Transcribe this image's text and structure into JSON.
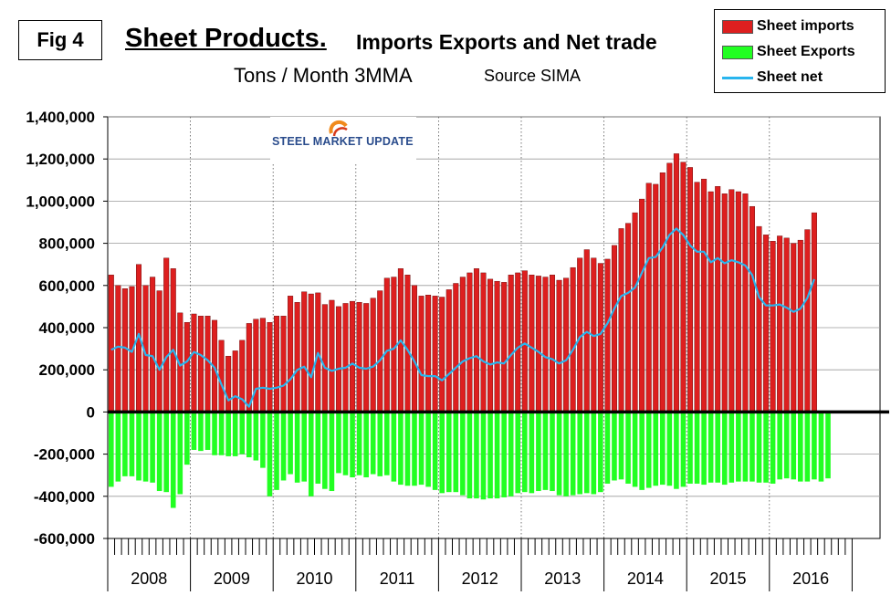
{
  "figure_label": "Fig 4",
  "title_main": "Sheet Products.",
  "title_rest": "Imports Exports and Net trade",
  "subtitle": "Tons / Month 3MMA",
  "source": "Source SIMA",
  "logo_text": "STEEL MARKET UPDATE",
  "colors": {
    "imports": "#dd1f1f",
    "exports": "#22ff22",
    "net": "#29b5ee",
    "axis": "#000000",
    "grid": "#9a9a9a"
  },
  "chart_data": {
    "type": "bar",
    "ylim": [
      -600000,
      1400000
    ],
    "y_ticks": [
      "1,400,000",
      "1,200,000",
      "1,000,000",
      "800,000",
      "600,000",
      "400,000",
      "200,000",
      "0",
      "-200,000",
      "-400,000",
      "-600,000"
    ],
    "y_tick_values": [
      1400000,
      1200000,
      1000000,
      800000,
      600000,
      400000,
      200000,
      0,
      -200000,
      -400000,
      -600000
    ],
    "years": [
      "2008",
      "2009",
      "2010",
      "2011",
      "2012",
      "2013",
      "2014",
      "2015",
      "2016"
    ],
    "months_per_year": 12,
    "vertical_year_gridlines": "dotted",
    "legend_placement": "top-right",
    "series": [
      {
        "name": "Sheet imports",
        "type": "bar",
        "values": [
          650000,
          600000,
          585000,
          595000,
          700000,
          600000,
          640000,
          575000,
          730000,
          680000,
          470000,
          425000,
          465000,
          455000,
          455000,
          435000,
          340000,
          265000,
          290000,
          340000,
          420000,
          440000,
          445000,
          425000,
          455000,
          455000,
          550000,
          520000,
          570000,
          560000,
          565000,
          510000,
          530000,
          500000,
          515000,
          525000,
          520000,
          515000,
          540000,
          575000,
          635000,
          640000,
          680000,
          650000,
          600000,
          550000,
          555000,
          550000,
          545000,
          580000,
          610000,
          640000,
          660000,
          680000,
          660000,
          630000,
          620000,
          615000,
          650000,
          660000,
          670000,
          650000,
          645000,
          640000,
          650000,
          625000,
          635000,
          685000,
          730000,
          770000,
          730000,
          705000,
          725000,
          790000,
          870000,
          895000,
          945000,
          1010000,
          1085000,
          1080000,
          1135000,
          1180000,
          1225000,
          1185000,
          1160000,
          1090000,
          1105000,
          1045000,
          1070000,
          1035000,
          1055000,
          1045000,
          1035000,
          975000,
          880000,
          840000,
          810000,
          835000,
          825000,
          800000,
          815000,
          865000,
          945000
        ]
      },
      {
        "name": "Sheet Exports",
        "type": "bar",
        "values": [
          -355000,
          -330000,
          -305000,
          -305000,
          -325000,
          -330000,
          -335000,
          -375000,
          -380000,
          -455000,
          -390000,
          -250000,
          -180000,
          -185000,
          -180000,
          -205000,
          -205000,
          -210000,
          -210000,
          -200000,
          -215000,
          -230000,
          -265000,
          -400000,
          -370000,
          -325000,
          -295000,
          -335000,
          -330000,
          -400000,
          -340000,
          -365000,
          -375000,
          -290000,
          -300000,
          -310000,
          -300000,
          -310000,
          -295000,
          -305000,
          -300000,
          -330000,
          -345000,
          -350000,
          -350000,
          -345000,
          -355000,
          -370000,
          -385000,
          -380000,
          -380000,
          -395000,
          -410000,
          -410000,
          -415000,
          -410000,
          -410000,
          -405000,
          -400000,
          -385000,
          -380000,
          -385000,
          -375000,
          -370000,
          -375000,
          -395000,
          -400000,
          -395000,
          -390000,
          -385000,
          -390000,
          -380000,
          -340000,
          -325000,
          -320000,
          -340000,
          -355000,
          -370000,
          -360000,
          -350000,
          -345000,
          -350000,
          -365000,
          -355000,
          -340000,
          -340000,
          -345000,
          -335000,
          -335000,
          -345000,
          -335000,
          -330000,
          -330000,
          -330000,
          -335000,
          -335000,
          -340000,
          -320000,
          -315000,
          -320000,
          -330000,
          -330000,
          -320000,
          -330000,
          -315000
        ]
      },
      {
        "name": "Sheet net",
        "type": "line",
        "values": [
          295000,
          310000,
          305000,
          285000,
          370000,
          270000,
          265000,
          200000,
          260000,
          295000,
          220000,
          240000,
          285000,
          270000,
          245000,
          210000,
          130000,
          55000,
          75000,
          60000,
          25000,
          110000,
          115000,
          110000,
          115000,
          125000,
          155000,
          200000,
          215000,
          165000,
          280000,
          210000,
          195000,
          205000,
          210000,
          230000,
          210000,
          205000,
          215000,
          245000,
          290000,
          300000,
          340000,
          295000,
          240000,
          175000,
          170000,
          170000,
          150000,
          180000,
          210000,
          240000,
          255000,
          265000,
          240000,
          225000,
          235000,
          230000,
          270000,
          305000,
          325000,
          305000,
          285000,
          260000,
          250000,
          230000,
          245000,
          295000,
          355000,
          380000,
          360000,
          370000,
          420000,
          490000,
          550000,
          565000,
          590000,
          660000,
          730000,
          735000,
          780000,
          840000,
          870000,
          840000,
          790000,
          760000,
          760000,
          710000,
          730000,
          705000,
          720000,
          710000,
          695000,
          650000,
          545000,
          505000,
          505000,
          510000,
          495000,
          475000,
          490000,
          540000,
          630000
        ]
      }
    ]
  }
}
